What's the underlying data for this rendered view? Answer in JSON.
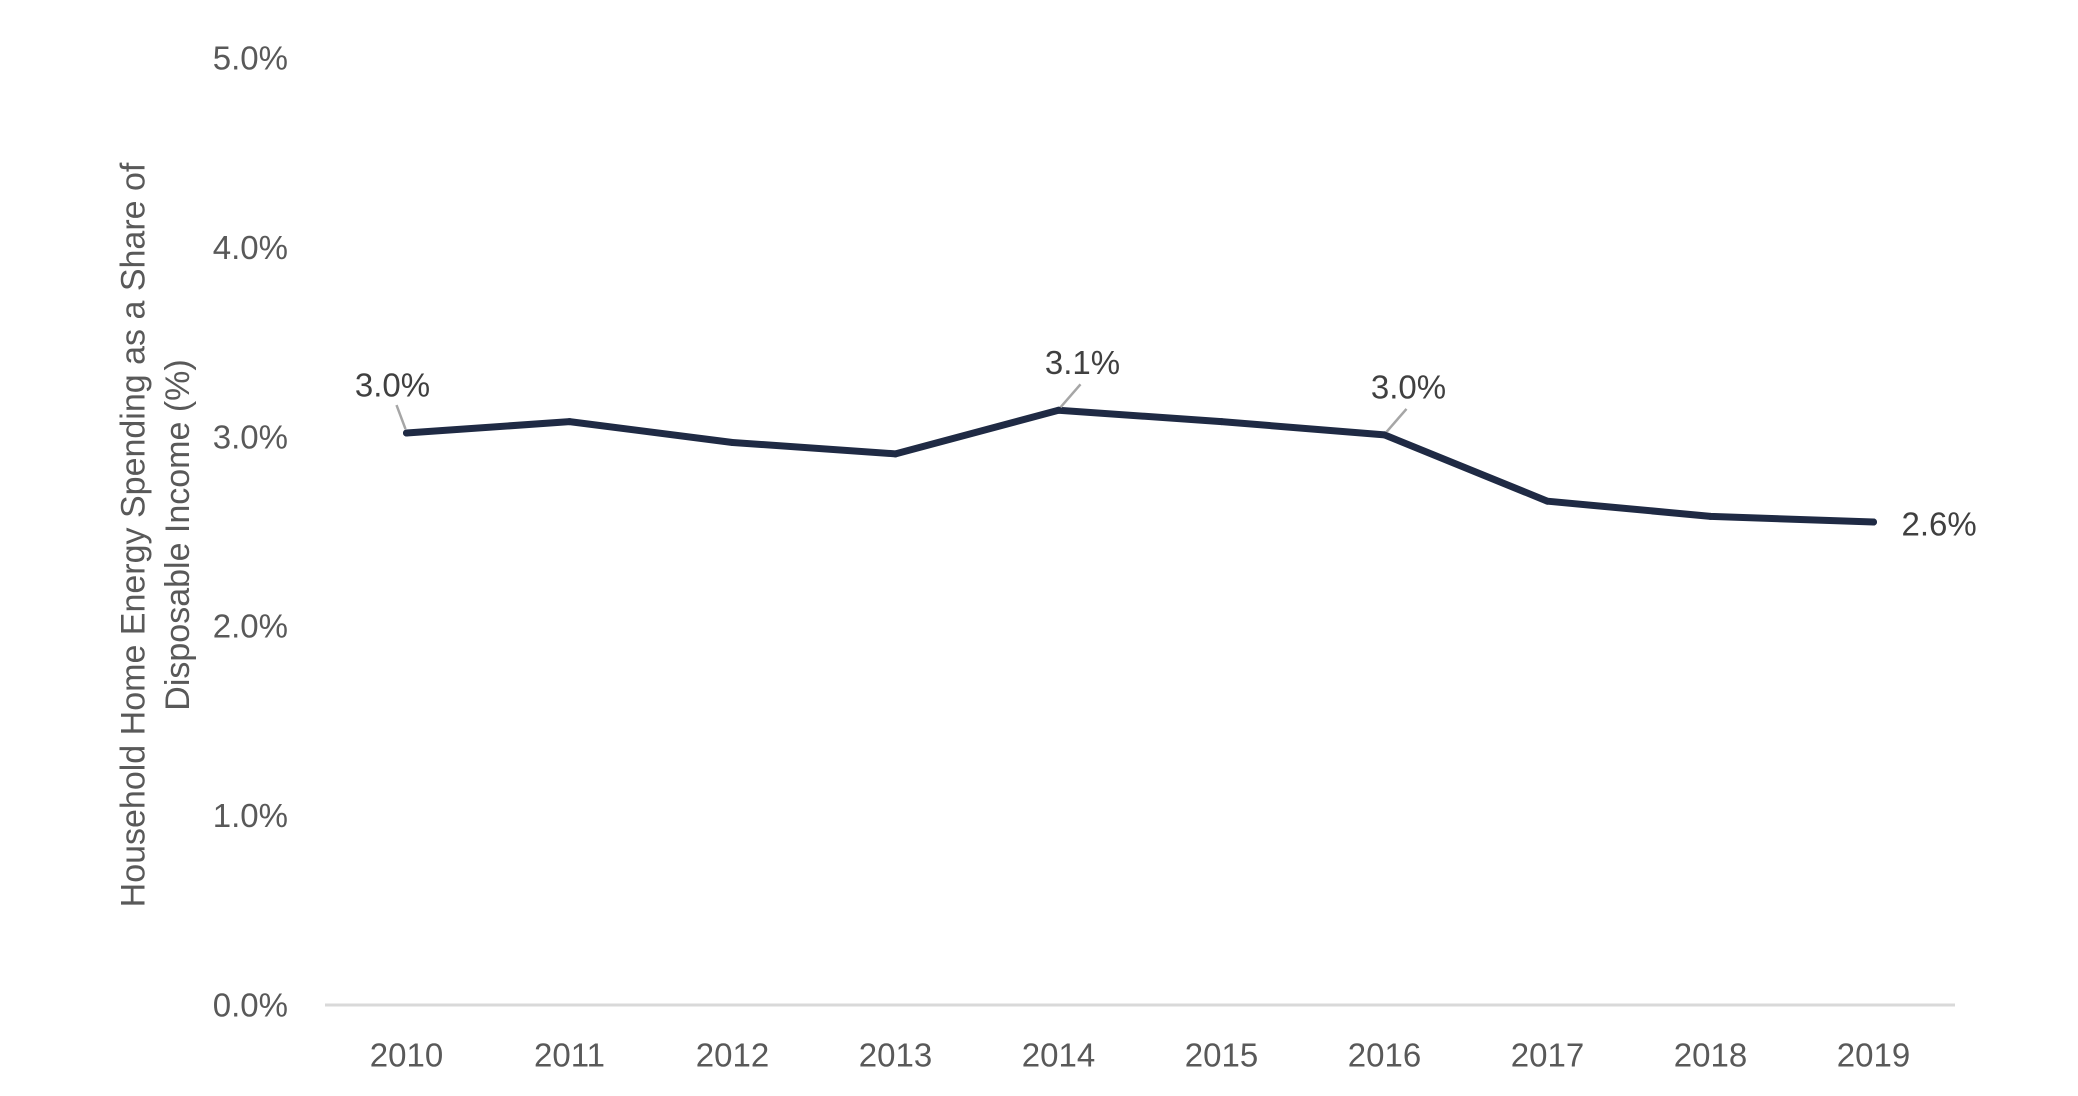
{
  "chart_data": {
    "type": "line",
    "title": "",
    "xlabel": "",
    "ylabel": "Household Home Energy Spending as a Share of Disposable Income (%)",
    "ylabel_lines": [
      "Household Home Energy Spending as a Share of",
      "Disposable Income (%)"
    ],
    "ylim": [
      0,
      5
    ],
    "yticks": [
      0,
      1,
      2,
      3,
      4,
      5
    ],
    "ytick_labels": [
      "0.0%",
      "1.0%",
      "2.0%",
      "3.0%",
      "4.0%",
      "5.0%"
    ],
    "categories": [
      "2010",
      "2011",
      "2012",
      "2013",
      "2014",
      "2015",
      "2016",
      "2017",
      "2018",
      "2019"
    ],
    "series": [
      {
        "values": [
          3.02,
          3.08,
          2.97,
          2.91,
          3.14,
          3.08,
          3.01,
          2.66,
          2.58,
          2.55
        ],
        "color": "#1f2a44"
      }
    ],
    "data_labels": [
      {
        "index": 0,
        "text": "3.0%"
      },
      {
        "index": 4,
        "text": "3.1%"
      },
      {
        "index": 6,
        "text": "3.0%"
      },
      {
        "index": 9,
        "text": "2.6%"
      }
    ],
    "grid": false,
    "legend": "none",
    "axis_color": "#d9d9d9",
    "leader_color": "#a6a6a6"
  }
}
